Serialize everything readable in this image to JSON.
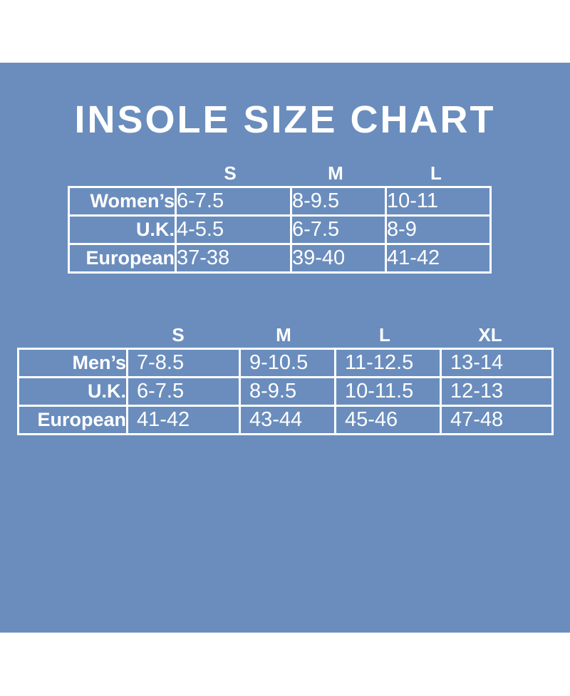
{
  "chart_data": [
    {
      "type": "table",
      "title": "INSOLE SIZE CHART",
      "columns": [
        "S",
        "M",
        "L"
      ],
      "rows": [
        {
          "label": "Women’s",
          "values": [
            "6-7.5",
            "8-9.5",
            "10-11"
          ]
        },
        {
          "label": "U.K.",
          "values": [
            "4-5.5",
            "6-7.5",
            "8-9"
          ]
        },
        {
          "label": "European",
          "values": [
            "37-38",
            "39-40",
            "41-42"
          ]
        }
      ]
    },
    {
      "type": "table",
      "columns": [
        "S",
        "M",
        "L",
        "XL"
      ],
      "rows": [
        {
          "label": "Men’s",
          "values": [
            "7-8.5",
            "9-10.5",
            "11-12.5",
            "13-14"
          ]
        },
        {
          "label": "U.K.",
          "values": [
            "6-7.5",
            "8-9.5",
            "10-11.5",
            "12-13"
          ]
        },
        {
          "label": "European",
          "values": [
            "41-42",
            "43-44",
            "45-46",
            "47-48"
          ]
        }
      ]
    }
  ],
  "colors": {
    "background": "#6a8dbd",
    "text": "#ffffff",
    "border": "#ffffff"
  }
}
